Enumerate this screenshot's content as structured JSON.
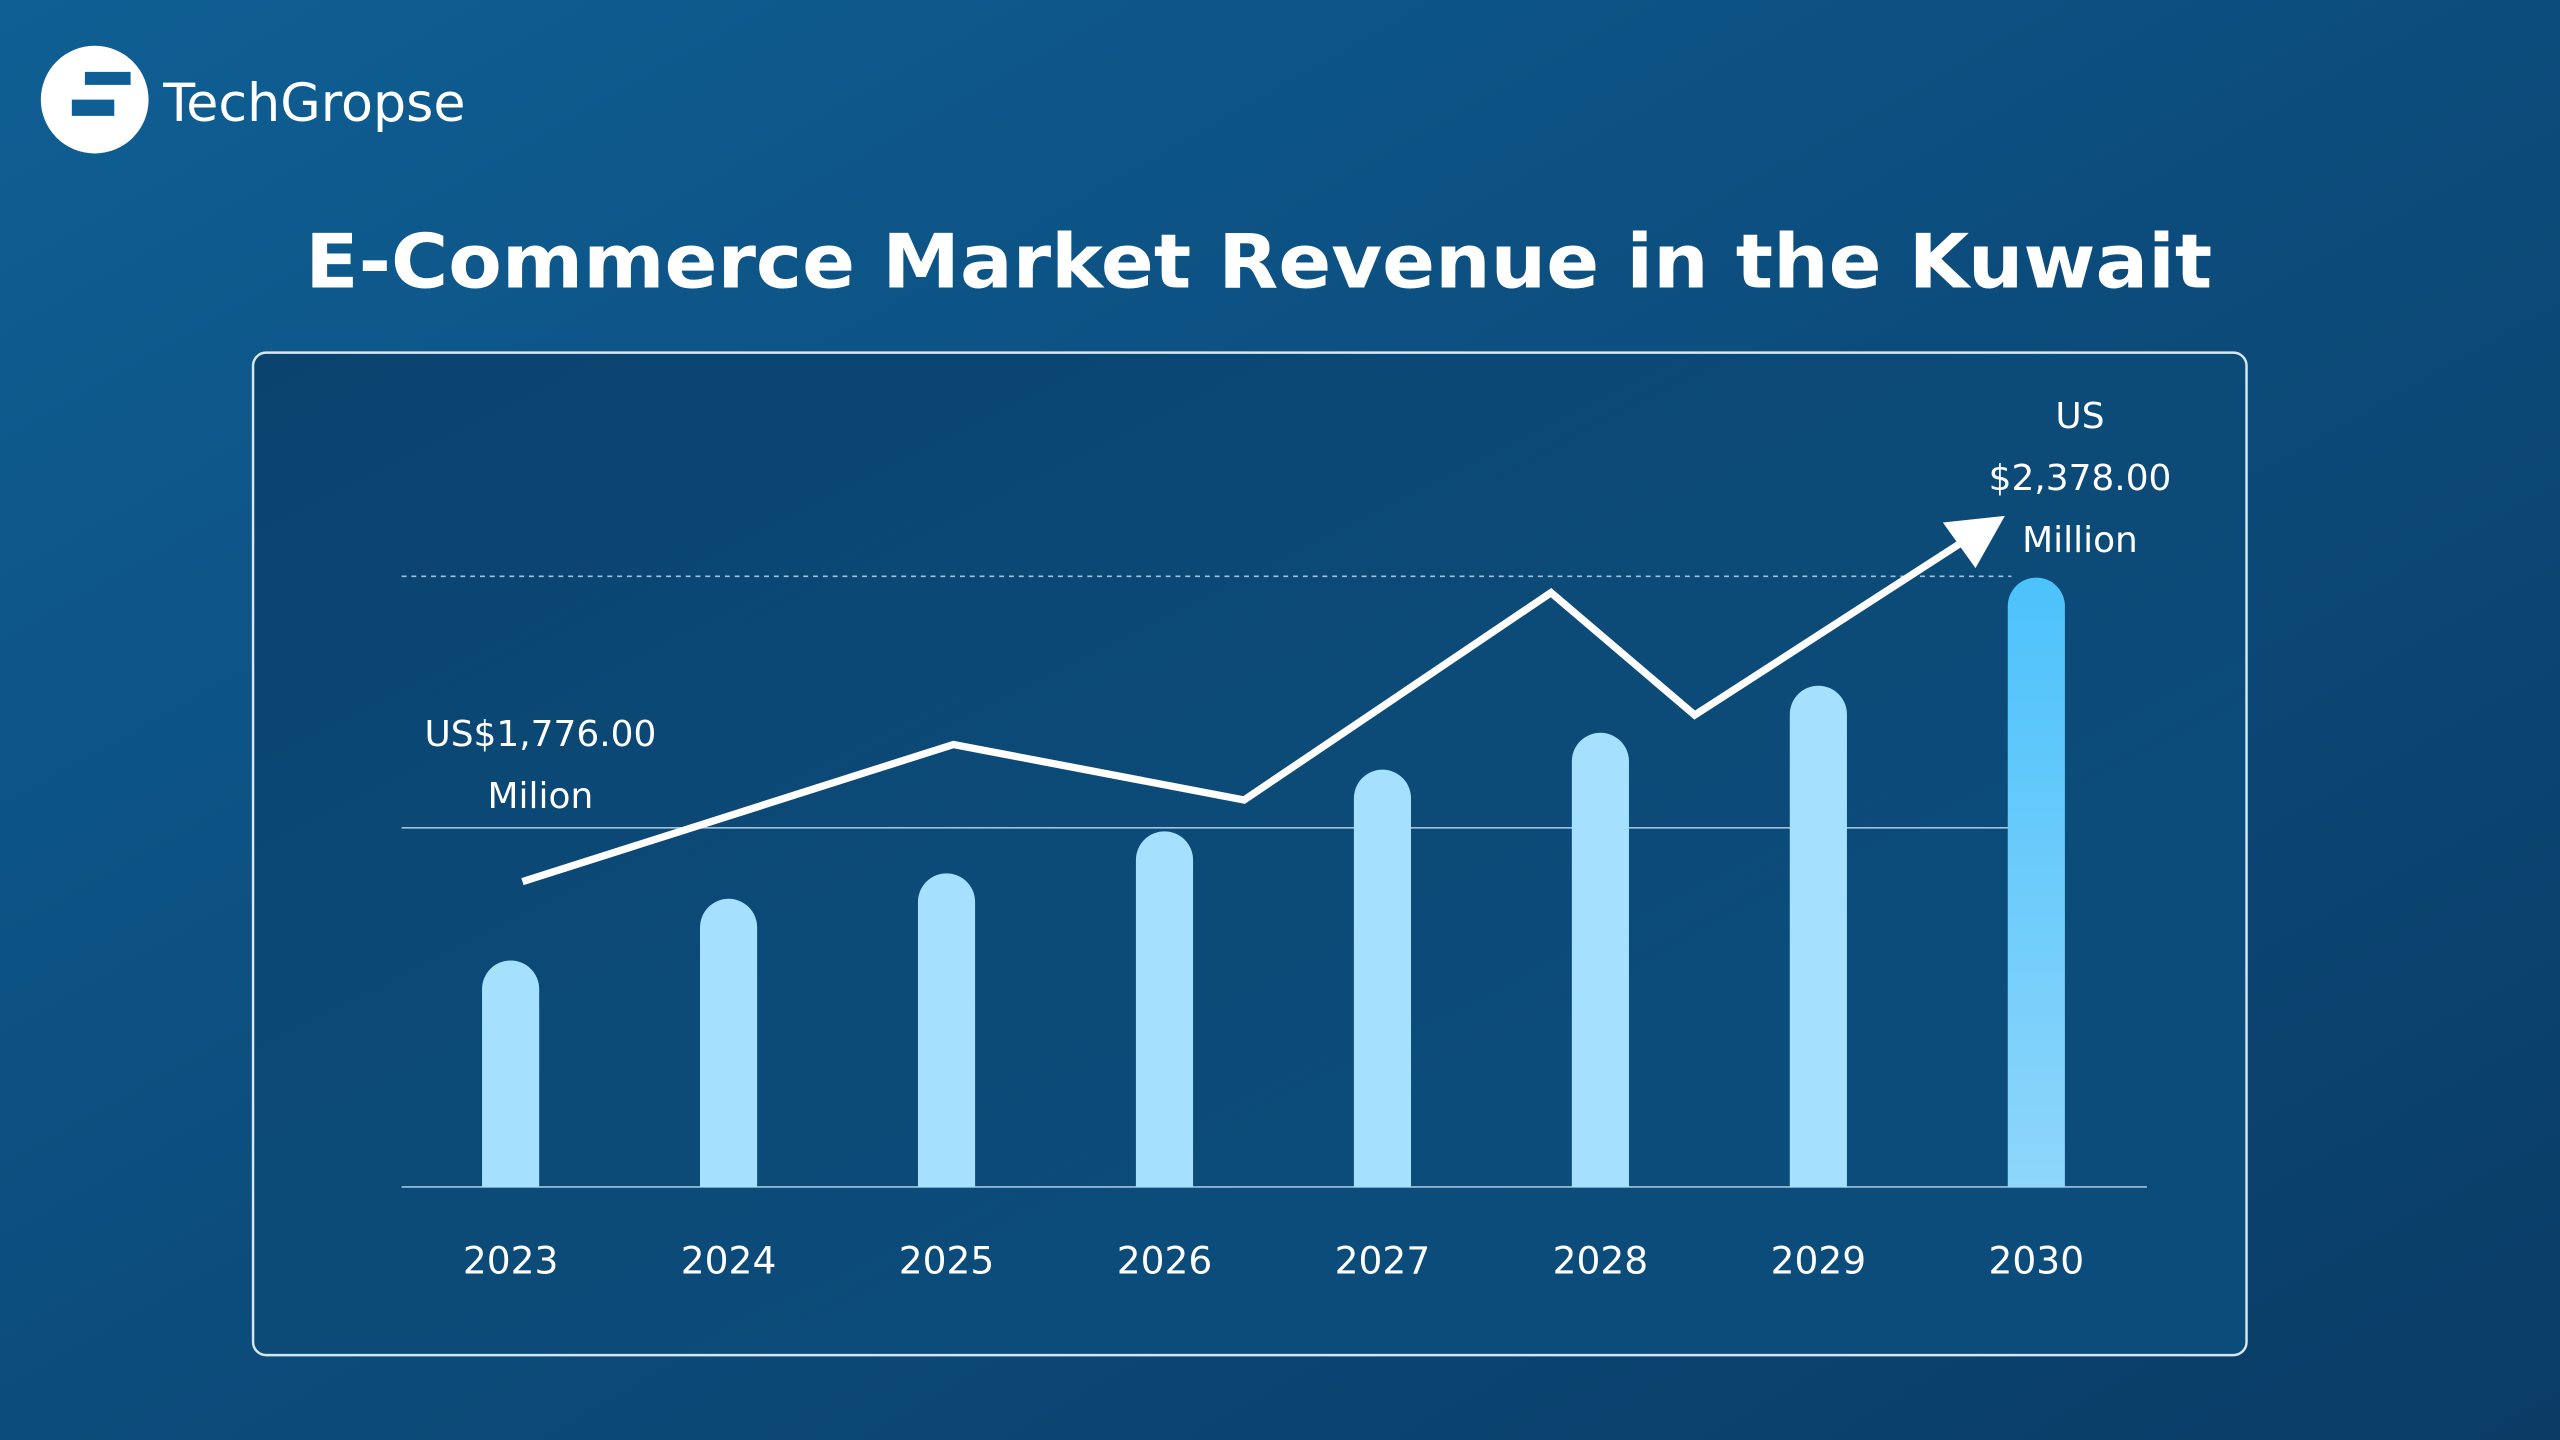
{
  "brand": "TechGropse",
  "chart_data": {
    "type": "bar",
    "title": "E-Commerce Market Revenue in the Kuwait",
    "categories": [
      "2023",
      "2024",
      "2025",
      "2026",
      "2027",
      "2028",
      "2029",
      "2030"
    ],
    "values": [
      1776,
      1873,
      1913,
      1979,
      2076,
      2134,
      2208,
      2378
    ],
    "value_labels": [
      "US$1,776.00 Milion",
      null,
      null,
      null,
      null,
      null,
      null,
      "US $2,378.00 Million"
    ],
    "color": "#a6e0ff",
    "highlight_color": "#4cc2fb",
    "ylim": [
      1420,
      2380
    ]
  }
}
